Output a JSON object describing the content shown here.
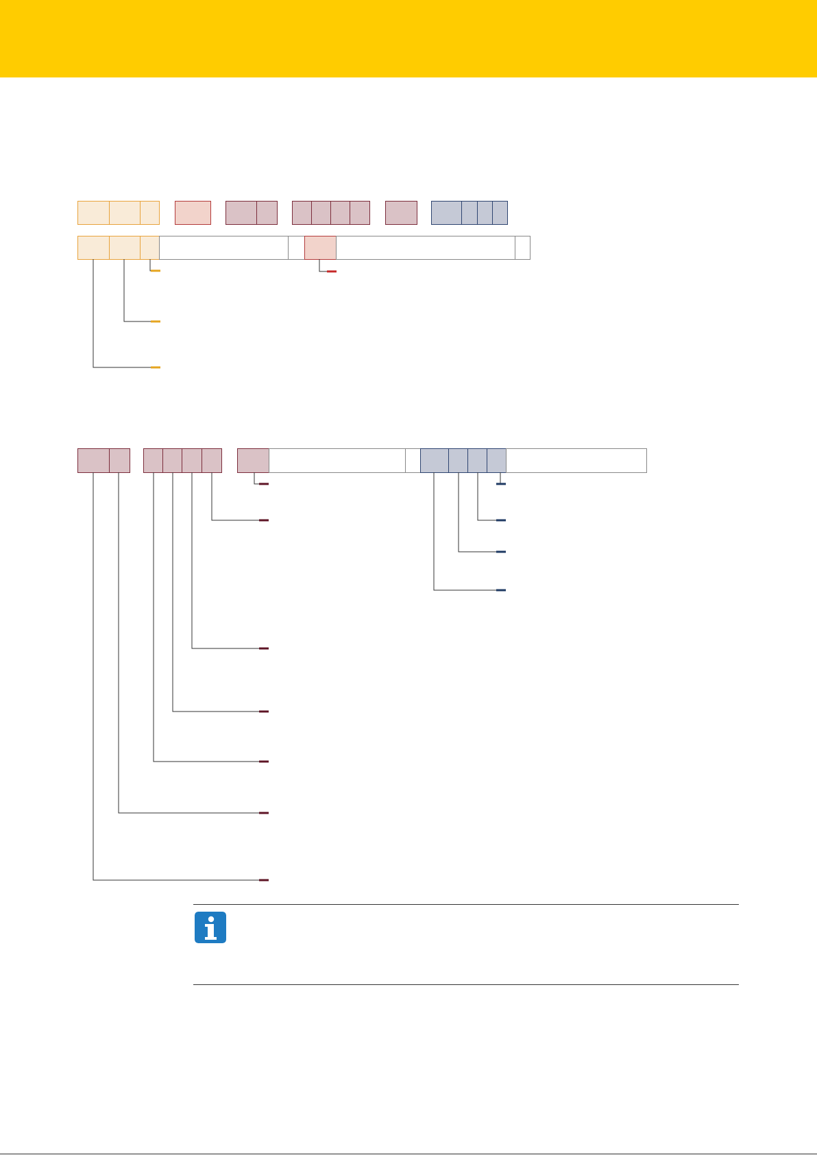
{
  "header": {
    "color": "#FFCC00"
  },
  "colors": {
    "yellow_fill": "#F9EBD8",
    "yellow_stroke": "#E8A33C",
    "yellow_marker": "#E5A520",
    "red_fill": "#F2D3CB",
    "red_stroke": "#B33A3A",
    "red_marker": "#C62828",
    "maroon_fill": "#DAC2C6",
    "maroon_stroke": "#7B2C3B",
    "maroon_marker": "#5E1425",
    "blue_fill": "#C5C9D6",
    "blue_stroke": "#2E4470",
    "blue_marker": "#1F3A63",
    "plain_stroke": "#888888",
    "leader_line": "#333333"
  },
  "note": {
    "icon": "info-icon",
    "icon_color": "#1E7BC2"
  }
}
